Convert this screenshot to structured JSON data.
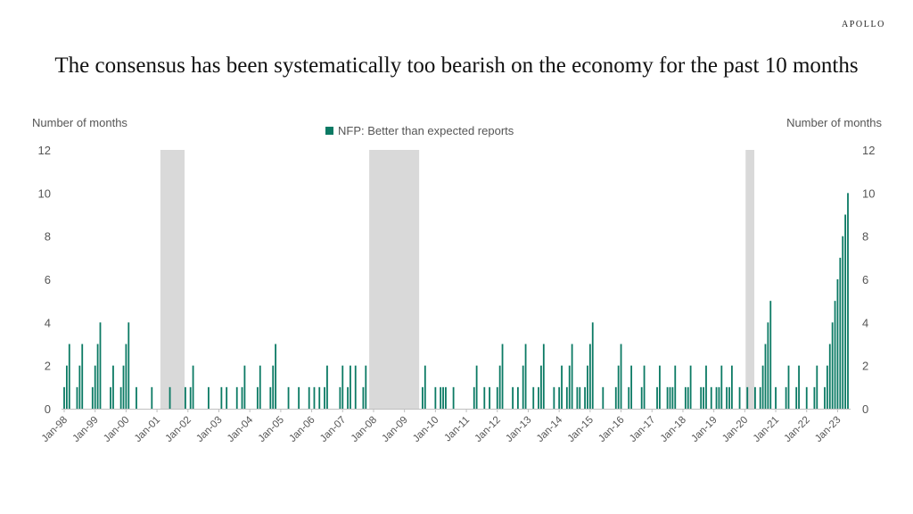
{
  "brand": "APOLLO",
  "title": "The consensus has been systematically too bearish on the economy for the past 10 months",
  "colors": {
    "bar": "#0b7a64",
    "recession": "#d9d9d9",
    "text": "#555555"
  },
  "chart_data": {
    "type": "bar",
    "title": "The consensus has been systematically too bearish on the economy for the past 10 months",
    "ylabel_left": "Number of months",
    "ylabel_right": "Number of months",
    "ylim": [
      0,
      12
    ],
    "yticks": [
      0,
      2,
      4,
      6,
      8,
      10,
      12
    ],
    "x_start": "1998-01",
    "x_end": "2023-01",
    "xtick_labels": [
      "Jan-98",
      "Jan-99",
      "Jan-00",
      "Jan-01",
      "Jan-02",
      "Jan-03",
      "Jan-04",
      "Jan-05",
      "Jan-06",
      "Jan-07",
      "Jan-08",
      "Jan-09",
      "Jan-10",
      "Jan-11",
      "Jan-12",
      "Jan-13",
      "Jan-14",
      "Jan-15",
      "Jan-16",
      "Jan-17",
      "Jan-18",
      "Jan-19",
      "Jan-20",
      "Jan-21",
      "Jan-22",
      "Jan-23"
    ],
    "legend_position": "top-center",
    "grid": false,
    "recessions": [
      [
        "2001-03",
        "2001-11"
      ],
      [
        "2007-12",
        "2009-06"
      ],
      [
        "2020-02",
        "2020-04"
      ]
    ],
    "series": [
      {
        "name": "NFP: Better than expected reports",
        "points": [
          [
            "1998-01",
            1
          ],
          [
            "1998-02",
            2
          ],
          [
            "1998-03",
            3
          ],
          [
            "1998-06",
            1
          ],
          [
            "1998-07",
            2
          ],
          [
            "1998-08",
            3
          ],
          [
            "1998-12",
            1
          ],
          [
            "1999-01",
            2
          ],
          [
            "1999-02",
            3
          ],
          [
            "1999-03",
            4
          ],
          [
            "1999-07",
            1
          ],
          [
            "1999-08",
            2
          ],
          [
            "1999-11",
            1
          ],
          [
            "1999-12",
            2
          ],
          [
            "2000-01",
            3
          ],
          [
            "2000-02",
            4
          ],
          [
            "2000-05",
            1
          ],
          [
            "2000-11",
            1
          ],
          [
            "2001-06",
            1
          ],
          [
            "2001-12",
            1
          ],
          [
            "2002-02",
            1
          ],
          [
            "2002-03",
            2
          ],
          [
            "2002-09",
            1
          ],
          [
            "2003-02",
            1
          ],
          [
            "2003-04",
            1
          ],
          [
            "2003-08",
            1
          ],
          [
            "2003-10",
            1
          ],
          [
            "2003-11",
            2
          ],
          [
            "2004-04",
            1
          ],
          [
            "2004-05",
            2
          ],
          [
            "2004-09",
            1
          ],
          [
            "2004-10",
            2
          ],
          [
            "2004-11",
            3
          ],
          [
            "2005-04",
            1
          ],
          [
            "2005-08",
            1
          ],
          [
            "2005-12",
            1
          ],
          [
            "2006-02",
            1
          ],
          [
            "2006-04",
            1
          ],
          [
            "2006-06",
            1
          ],
          [
            "2006-07",
            2
          ],
          [
            "2006-12",
            1
          ],
          [
            "2007-01",
            2
          ],
          [
            "2007-03",
            1
          ],
          [
            "2007-04",
            2
          ],
          [
            "2007-06",
            2
          ],
          [
            "2007-09",
            1
          ],
          [
            "2007-10",
            2
          ],
          [
            "2009-08",
            1
          ],
          [
            "2009-09",
            2
          ],
          [
            "2010-01",
            1
          ],
          [
            "2010-03",
            1
          ],
          [
            "2010-04",
            1
          ],
          [
            "2010-05",
            1
          ],
          [
            "2010-08",
            1
          ],
          [
            "2011-04",
            1
          ],
          [
            "2011-05",
            2
          ],
          [
            "2011-08",
            1
          ],
          [
            "2011-10",
            1
          ],
          [
            "2012-01",
            1
          ],
          [
            "2012-02",
            2
          ],
          [
            "2012-03",
            3
          ],
          [
            "2012-07",
            1
          ],
          [
            "2012-09",
            1
          ],
          [
            "2012-11",
            2
          ],
          [
            "2012-12",
            3
          ],
          [
            "2013-03",
            1
          ],
          [
            "2013-05",
            1
          ],
          [
            "2013-06",
            2
          ],
          [
            "2013-07",
            3
          ],
          [
            "2013-11",
            1
          ],
          [
            "2014-01",
            1
          ],
          [
            "2014-02",
            2
          ],
          [
            "2014-04",
            1
          ],
          [
            "2014-05",
            2
          ],
          [
            "2014-06",
            3
          ],
          [
            "2014-08",
            1
          ],
          [
            "2014-09",
            1
          ],
          [
            "2014-11",
            1
          ],
          [
            "2014-12",
            2
          ],
          [
            "2015-01",
            3
          ],
          [
            "2015-02",
            4
          ],
          [
            "2015-06",
            1
          ],
          [
            "2015-11",
            1
          ],
          [
            "2015-12",
            2
          ],
          [
            "2016-01",
            3
          ],
          [
            "2016-04",
            1
          ],
          [
            "2016-05",
            2
          ],
          [
            "2016-09",
            1
          ],
          [
            "2016-10",
            2
          ],
          [
            "2017-03",
            1
          ],
          [
            "2017-04",
            2
          ],
          [
            "2017-07",
            1
          ],
          [
            "2017-08",
            1
          ],
          [
            "2017-09",
            1
          ],
          [
            "2017-10",
            2
          ],
          [
            "2018-02",
            1
          ],
          [
            "2018-03",
            1
          ],
          [
            "2018-04",
            2
          ],
          [
            "2018-08",
            1
          ],
          [
            "2018-09",
            1
          ],
          [
            "2018-10",
            2
          ],
          [
            "2018-12",
            1
          ],
          [
            "2019-02",
            1
          ],
          [
            "2019-03",
            1
          ],
          [
            "2019-04",
            2
          ],
          [
            "2019-06",
            1
          ],
          [
            "2019-07",
            1
          ],
          [
            "2019-08",
            2
          ],
          [
            "2019-11",
            1
          ],
          [
            "2020-02",
            1
          ],
          [
            "2020-05",
            1
          ],
          [
            "2020-07",
            1
          ],
          [
            "2020-08",
            2
          ],
          [
            "2020-09",
            3
          ],
          [
            "2020-10",
            4
          ],
          [
            "2020-11",
            5
          ],
          [
            "2021-01",
            1
          ],
          [
            "2021-05",
            1
          ],
          [
            "2021-06",
            2
          ],
          [
            "2021-09",
            1
          ],
          [
            "2021-10",
            2
          ],
          [
            "2022-01",
            1
          ],
          [
            "2022-04",
            1
          ],
          [
            "2022-05",
            2
          ],
          [
            "2022-08",
            1
          ],
          [
            "2022-09",
            2
          ],
          [
            "2022-10",
            3
          ],
          [
            "2022-11",
            4
          ],
          [
            "2022-12",
            5
          ],
          [
            "2023-01",
            6
          ],
          [
            "2023-02",
            7
          ],
          [
            "2023-03",
            8
          ],
          [
            "2023-04",
            9
          ],
          [
            "2023-05",
            10
          ]
        ]
      }
    ]
  }
}
